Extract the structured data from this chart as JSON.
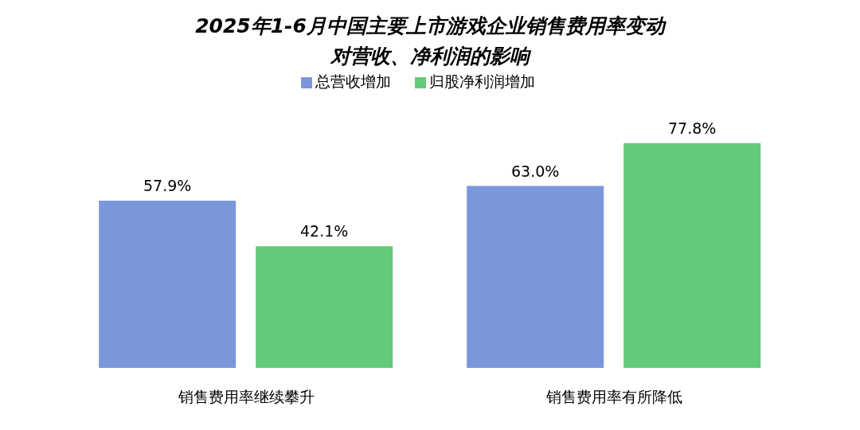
{
  "chart_data": {
    "type": "bar",
    "title": "2025年1-6月中国主要上市游戏企业销售费用率变动",
    "subtitle": "对营收、净利润的影响",
    "categories": [
      "销售费用率继续攀升",
      "销售费用率有所降低"
    ],
    "series": [
      {
        "name": "总营收增加",
        "color": "#7b97db",
        "values": [
          57.9,
          63.0
        ],
        "value_labels": [
          "57.9%",
          "63.0%"
        ]
      },
      {
        "name": "归股净利润增加",
        "color": "#63cb77",
        "values": [
          42.1,
          77.8
        ],
        "value_labels": [
          "42.1%",
          "77.8%"
        ]
      }
    ],
    "legend": "top",
    "grid": false
  }
}
